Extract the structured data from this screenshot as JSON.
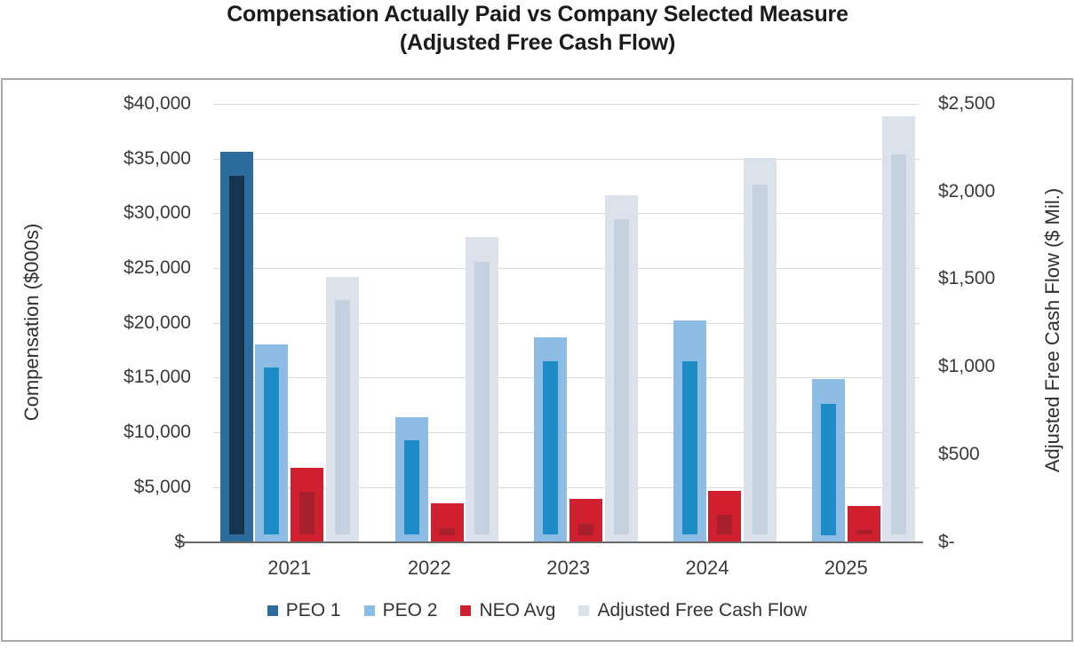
{
  "page": {
    "title_line1": "Compensation Actually Paid vs Company Selected Measure",
    "title_line2": "(Adjusted Free Cash Flow)"
  },
  "chart_data": {
    "type": "bar",
    "title": "Compensation Actually Paid vs Company Selected Measure (Adjusted Free Cash Flow)",
    "categories": [
      "2021",
      "2022",
      "2023",
      "2024",
      "2025"
    ],
    "left_axis": {
      "label": "Compensation ($000s)",
      "ticks": [
        "$40,000",
        "$35,000",
        "$30,000",
        "$25,000",
        "$20,000",
        "$15,000",
        "$10,000",
        "$5,000",
        "$-"
      ],
      "range": [
        0,
        40000
      ]
    },
    "right_axis": {
      "label": "Adjusted Free Cash Flow ($ Mil.)",
      "ticks": [
        "$2,500",
        "$2,000",
        "$1,500",
        "$1,000",
        "$500",
        "$-"
      ],
      "range": [
        0,
        2500
      ]
    },
    "series": [
      {
        "name": "PEO 1",
        "axis": "left",
        "color": "#2b6c9d",
        "inner_color": "#15344e",
        "values": [
          35600,
          null,
          null,
          null,
          null
        ],
        "inner_values": [
          33400,
          null,
          null,
          null,
          null
        ]
      },
      {
        "name": "PEO 2",
        "axis": "left",
        "color": "#8dbde4",
        "inner_color": "#1e8cc6",
        "values": [
          18000,
          11400,
          18700,
          20200,
          14900
        ],
        "inner_values": [
          15900,
          9300,
          16500,
          16500,
          12600
        ]
      },
      {
        "name": "NEO Avg",
        "axis": "left",
        "color": "#d01f2e",
        "inner_color": "#a81f2e",
        "values": [
          6800,
          3500,
          3900,
          4700,
          3300
        ],
        "inner_values": [
          4600,
          1300,
          1700,
          2500,
          1100
        ]
      },
      {
        "name": "Adjusted Free Cash Flow",
        "axis": "right",
        "color": "#dbe2ec",
        "inner_color": "#c6d1e0",
        "values": [
          1510,
          1740,
          1980,
          2190,
          2430
        ],
        "inner_values": [
          1380,
          1600,
          1840,
          2040,
          2210
        ]
      }
    ],
    "legend": [
      "PEO 1",
      "PEO 2",
      "NEO Avg",
      "Adjusted Free Cash Flow"
    ],
    "legend_position": "bottom",
    "gridlines": "horizontal",
    "bar_style": "outer bar with darker inset inner bar"
  },
  "style": {
    "gridline_color": "#d9d9d9",
    "axis_line_color": "#6a6a6a",
    "frame_border_color": "#a9a9a9",
    "text_color": "#3a3a3a",
    "title_color": "#1b1b1b"
  }
}
